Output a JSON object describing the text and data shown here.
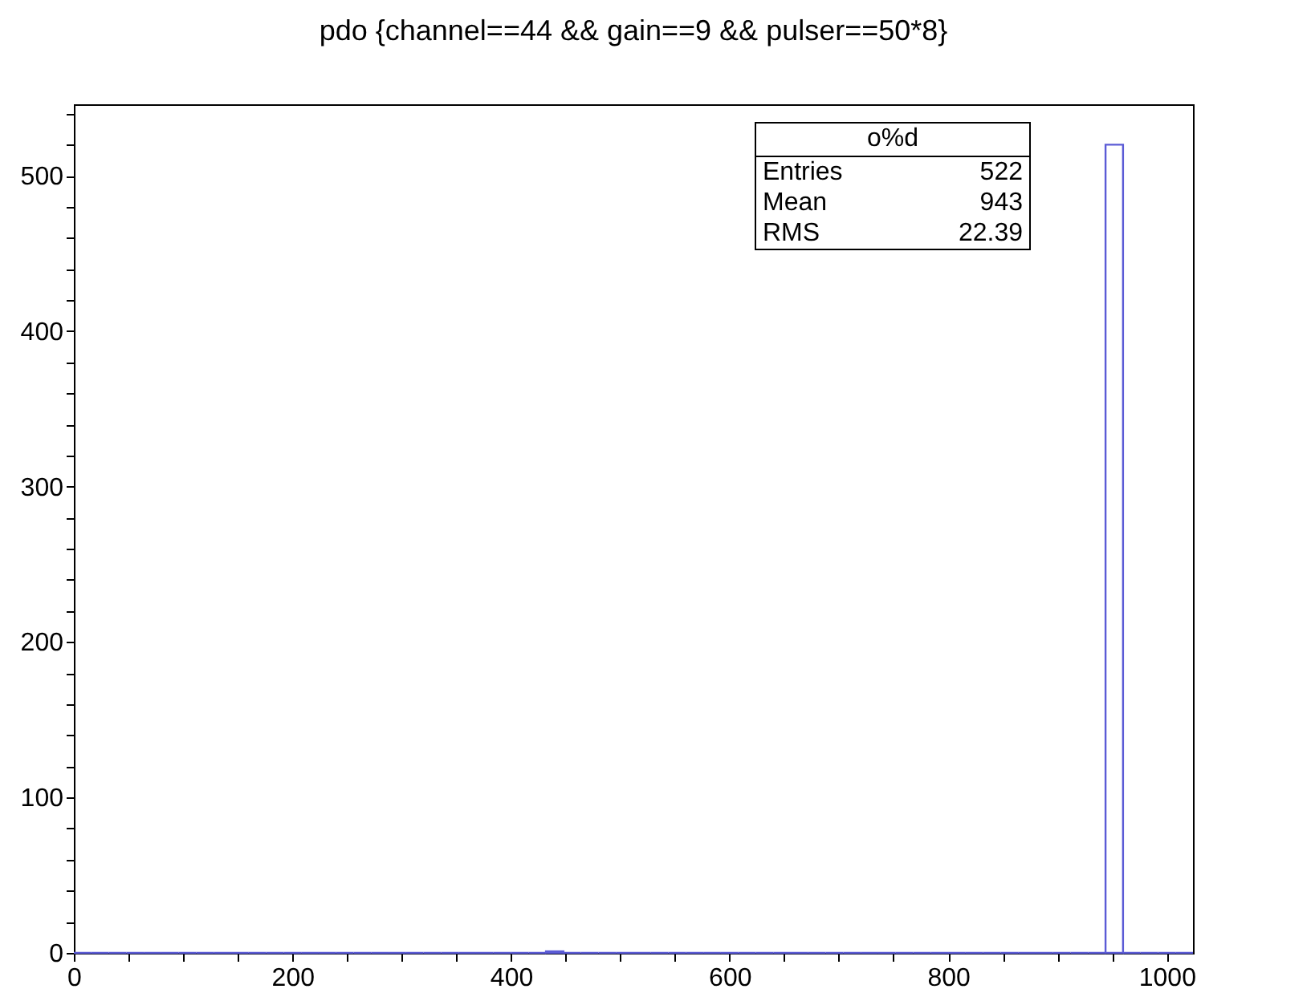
{
  "chart_data": {
    "type": "histogram",
    "title": "pdo {channel==44 && gain==9 && pulser==50*8}",
    "bins": [
      0,
      16,
      32,
      48,
      64,
      80,
      96,
      112,
      128,
      144,
      160,
      176,
      192,
      208,
      224,
      240,
      256,
      272,
      288,
      304,
      320,
      336,
      352,
      368,
      384,
      400,
      416,
      432,
      448,
      464,
      480,
      496,
      512,
      528,
      544,
      560,
      576,
      592,
      608,
      624,
      640,
      656,
      672,
      688,
      704,
      720,
      736,
      752,
      768,
      784,
      800,
      816,
      832,
      848,
      864,
      880,
      896,
      912,
      928,
      944,
      960,
      976,
      992,
      1008,
      1024
    ],
    "values": [
      0,
      0,
      0,
      0,
      0,
      0,
      0,
      0,
      0,
      0,
      0,
      0,
      0,
      0,
      0,
      0,
      0,
      0,
      0,
      0,
      0,
      0,
      0,
      0,
      0,
      0,
      0,
      1,
      0,
      0,
      0,
      0,
      0,
      0,
      0,
      0,
      0,
      0,
      0,
      0,
      0,
      0,
      0,
      0,
      0,
      0,
      0,
      0,
      0,
      0,
      0,
      0,
      0,
      0,
      0,
      0,
      0,
      0,
      0,
      520,
      0,
      0,
      0,
      0
    ],
    "color": "#5b5bd6",
    "xlim": [
      0,
      1024
    ],
    "ylim": [
      0,
      546
    ],
    "xticks": [
      0,
      {
        "value": 50,
        "label": null
      },
      {
        "value": 100,
        "label": null
      },
      {
        "value": 150,
        "label": null
      },
      200,
      {
        "value": 250,
        "label": null
      },
      {
        "value": 300,
        "label": null
      },
      {
        "value": 350,
        "label": null
      },
      400,
      {
        "value": 450,
        "label": null
      },
      {
        "value": 500,
        "label": null
      },
      {
        "value": 550,
        "label": null
      },
      600,
      {
        "value": 650,
        "label": null
      },
      {
        "value": 700,
        "label": null
      },
      {
        "value": 750,
        "label": null
      },
      800,
      {
        "value": 850,
        "label": null
      },
      {
        "value": 900,
        "label": null
      },
      {
        "value": 950,
        "label": null
      },
      1000
    ],
    "yticks": [
      0,
      {
        "value": 20,
        "label": null
      },
      {
        "value": 40,
        "label": null
      },
      {
        "value": 60,
        "label": null
      },
      {
        "value": 80,
        "label": null
      },
      100,
      {
        "value": 120,
        "label": null
      },
      {
        "value": 140,
        "label": null
      },
      {
        "value": 160,
        "label": null
      },
      {
        "value": 180,
        "label": null
      },
      200,
      {
        "value": 220,
        "label": null
      },
      {
        "value": 240,
        "label": null
      },
      {
        "value": 260,
        "label": null
      },
      {
        "value": 280,
        "label": null
      },
      300,
      {
        "value": 320,
        "label": null
      },
      {
        "value": 340,
        "label": null
      },
      {
        "value": 360,
        "label": null
      },
      {
        "value": 380,
        "label": null
      },
      400,
      {
        "value": 420,
        "label": null
      },
      {
        "value": 440,
        "label": null
      },
      {
        "value": 460,
        "label": null
      },
      {
        "value": 480,
        "label": null
      },
      500,
      {
        "value": 520,
        "label": null
      },
      {
        "value": 540,
        "label": null
      }
    ],
    "annotations": [
      "o%d",
      "Entries",
      "522",
      "Mean",
      "943",
      "RMS",
      "22.39"
    ]
  }
}
